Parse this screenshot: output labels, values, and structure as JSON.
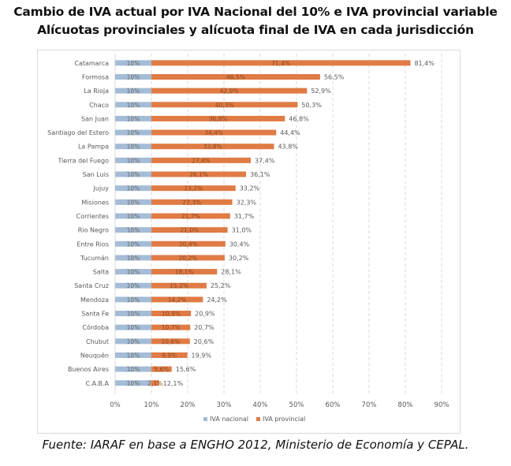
{
  "header": {
    "title": "Cambio de IVA actual por IVA Nacional del 10% e IVA provincial variable",
    "subtitle": "Alícuotas provinciales y alícuota final de IVA en cada jurisdicción"
  },
  "footer": {
    "source": "Fuente: IARAF en base a ENGHO  2012, Ministerio de Economía y CEPAL."
  },
  "colors": {
    "nacional": "#a5bcd6",
    "provincial": "#e07b45",
    "grid": "#d9d9d9",
    "text": "#595959"
  },
  "chart_data": {
    "type": "bar",
    "orientation": "horizontal",
    "stacked": true,
    "title": "Cambio de IVA actual por IVA Nacional del 10% e IVA provincial variable",
    "subtitle": "Alícuotas provinciales y alícuota final de IVA en cada jurisdicción",
    "xlabel": "",
    "ylabel": "",
    "xlim": [
      0,
      90
    ],
    "xticks": [
      "0%",
      "10%",
      "20%",
      "30%",
      "40%",
      "50%",
      "60%",
      "70%",
      "80%",
      "90%"
    ],
    "grid": "vertical-dashed",
    "legend_position": "bottom",
    "categories": [
      "Catamarca",
      "Formosa",
      "La Rioja",
      "Chaco",
      "San Juan",
      "Santiago del Estero",
      "La Pampa",
      "Tierra del Fuego",
      "San Luis",
      "Jujuy",
      "Misiones",
      "Corrientes",
      "Rio Negro",
      "Entre Rios",
      "Tucumán",
      "Salta",
      "Santa Cruz",
      "Mendoza",
      "Santa Fe",
      "Córdoba",
      "Chubut",
      "Neuquén",
      "Buenos Aires",
      "C.A.B.A"
    ],
    "series": [
      {
        "name": "IVA nacional",
        "values": [
          10,
          10,
          10,
          10,
          10,
          10,
          10,
          10,
          10,
          10,
          10,
          10,
          10,
          10,
          10,
          10,
          10,
          10,
          10,
          10,
          10,
          10,
          10,
          10
        ],
        "labels": [
          "10%",
          "10%",
          "10%",
          "10%",
          "10%",
          "10%",
          "10%",
          "10%",
          "10%",
          "10%",
          "10%",
          "10%",
          "10%",
          "10%",
          "10%",
          "10%",
          "10%",
          "10%",
          "10%",
          "10%",
          "10%",
          "10%",
          "10%",
          "10%"
        ]
      },
      {
        "name": "IVA provincial",
        "values": [
          71.4,
          46.5,
          42.9,
          40.3,
          36.8,
          34.4,
          33.8,
          27.4,
          26.1,
          23.2,
          22.3,
          21.7,
          21.0,
          20.4,
          20.2,
          18.1,
          15.2,
          14.2,
          10.9,
          10.7,
          10.6,
          9.9,
          5.6,
          2.1
        ],
        "labels": [
          "71,4%",
          "46,5%",
          "42,9%",
          "40,3%",
          "36,8%",
          "34,4%",
          "33,8%",
          "27,4%",
          "26,1%",
          "23,2%",
          "22,3%",
          "21,7%",
          "21,0%",
          "20,4%",
          "20,2%",
          "18,1%",
          "15,2%",
          "14,2%",
          "10,9%",
          "10,7%",
          "10,6%",
          "9,9%",
          "5,6%",
          "2,1%"
        ]
      }
    ],
    "totals": [
      81.4,
      56.5,
      52.9,
      50.3,
      46.8,
      44.4,
      43.8,
      37.4,
      36.1,
      33.2,
      32.3,
      31.7,
      31.0,
      30.4,
      30.2,
      28.1,
      25.2,
      24.2,
      20.9,
      20.7,
      20.6,
      19.9,
      15.6,
      12.1
    ],
    "total_labels": [
      "81,4%",
      "56,5%",
      "52,9%",
      "50,3%",
      "46,8%",
      "44,4%",
      "43,8%",
      "37,4%",
      "36,1%",
      "33,2%",
      "32,3%",
      "31,7%",
      "31,0%",
      "30,4%",
      "30,2%",
      "28,1%",
      "25,2%",
      "24,2%",
      "20,9%",
      "20,7%",
      "20,6%",
      "19,9%",
      "15,6%",
      "12,1%"
    ]
  }
}
